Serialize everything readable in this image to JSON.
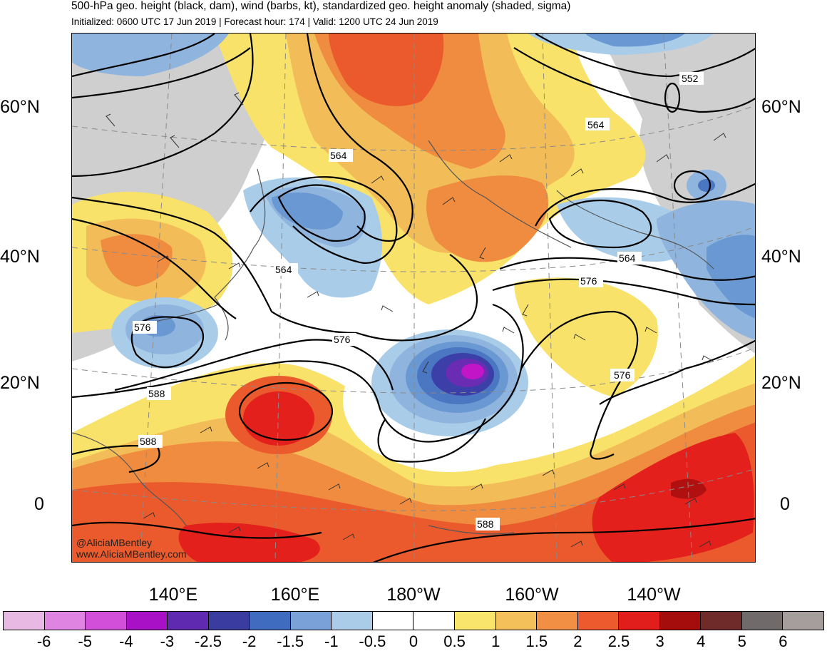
{
  "header": {
    "title": "500-hPa geo. height (black, dam), wind (barbs, kt), standardized geo. height anomaly (shaded, sigma)",
    "subtitle": "Initialized: 0600 UTC 17 Jun 2019 | Forecast hour: 174 | Valid: 1200 UTC 24 Jun 2019"
  },
  "map": {
    "lat_labels_left": [
      "60°N",
      "40°N",
      "20°N",
      "0"
    ],
    "lat_labels_right": [
      "60°N",
      "40°N",
      "20°N",
      "0"
    ],
    "lon_labels": [
      "140°E",
      "160°E",
      "180°W",
      "160°W",
      "140°W"
    ],
    "contour_labels": [
      "552",
      "564",
      "564",
      "564",
      "564",
      "576",
      "576",
      "576",
      "576",
      "588",
      "588",
      "588"
    ],
    "credit_handle": "@AliciaMBentley",
    "credit_url": "www.AliciaMBentley.com",
    "colors": {
      "land_gray": "#cfcfcf",
      "anom_neg_0_5": "#a9cde8",
      "anom_neg_1": "#8fb5de",
      "anom_neg_1_5": "#6a98d2",
      "anom_neg_2": "#4a76c2",
      "anom_neg_2_5": "#3d3fa8",
      "anom_neg_3": "#6a2cb3",
      "anom_neg_4": "#c315c8",
      "anom_pos_0_5": "#f9e26a",
      "anom_pos_1": "#f2bd58",
      "anom_pos_1_5": "#f08c40",
      "anom_pos_2": "#eb5a2c",
      "anom_pos_2_5": "#e3201c",
      "anom_pos_3": "#b01010"
    }
  },
  "colorbar": {
    "colors": [
      "#e7b9e3",
      "#df84e0",
      "#d24fd9",
      "#a811c6",
      "#5f2ab0",
      "#3a3c9f",
      "#3f6cbf",
      "#7aa2d8",
      "#abcce8",
      "#ffffff",
      "#ffffff",
      "#f9e46c",
      "#f3c05a",
      "#f18f44",
      "#ec5a2d",
      "#e21e1c",
      "#a50d0d",
      "#6f2a2a",
      "#706a6a",
      "#a69d9d"
    ],
    "ticks": [
      "-6",
      "-5",
      "-4",
      "-3",
      "-2.5",
      "-2",
      "-1.5",
      "-1",
      "-0.5",
      "0",
      "0.5",
      "1",
      "1.5",
      "2",
      "2.5",
      "3",
      "4",
      "5",
      "6"
    ]
  }
}
